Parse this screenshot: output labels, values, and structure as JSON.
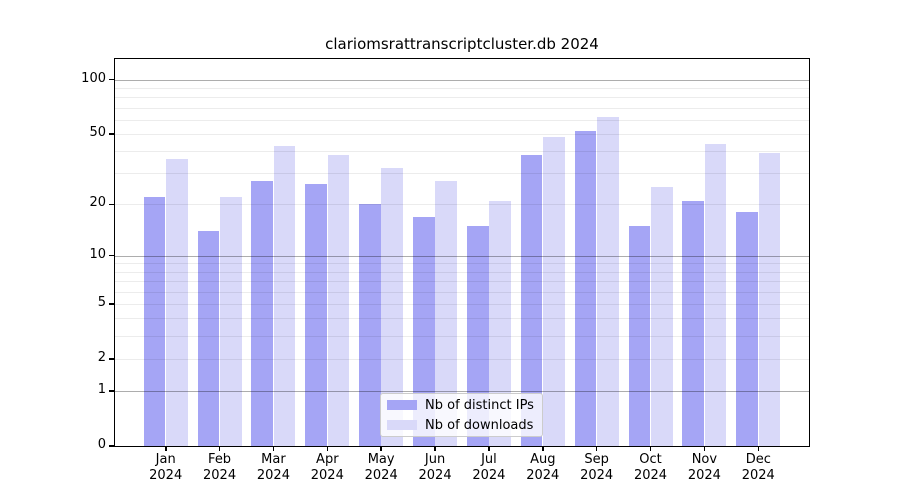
{
  "chart_data": {
    "type": "bar",
    "title": "clariomsrattranscriptcluster.db 2024",
    "categories": [
      "Jan",
      "Feb",
      "Mar",
      "Apr",
      "May",
      "Jun",
      "Jul",
      "Aug",
      "Sep",
      "Oct",
      "Nov",
      "Dec"
    ],
    "year_label": "2024",
    "series": [
      {
        "name": "Nb of distinct IPs",
        "color": "#a5a5f5",
        "values": [
          22,
          14,
          27,
          26,
          20,
          17,
          15,
          38,
          52,
          15,
          21,
          18
        ]
      },
      {
        "name": "Nb of downloads",
        "color": "#d9d9f9",
        "values": [
          36,
          22,
          43,
          38,
          32,
          27,
          21,
          48,
          62,
          25,
          44,
          39
        ]
      }
    ],
    "xlabel": "",
    "ylabel": "",
    "yscale": "log1p",
    "ylim": [
      0,
      130
    ],
    "y_ticks": [
      0,
      1,
      2,
      5,
      10,
      20,
      50,
      100
    ],
    "y_minor_gridlines": [
      2,
      3,
      4,
      5,
      6,
      7,
      8,
      9,
      20,
      30,
      40,
      50,
      60,
      70,
      80,
      90
    ],
    "y_major_gridlines": [
      1,
      10,
      100
    ],
    "grid": true,
    "legend_position": "bottom-center"
  }
}
